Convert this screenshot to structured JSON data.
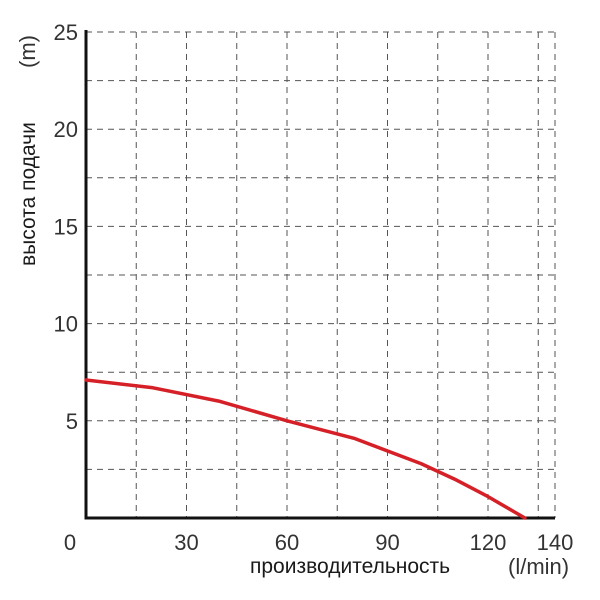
{
  "chart_data": {
    "type": "line",
    "xlabel": "производительность",
    "xunit": "(l/min)",
    "ylabel": "высота подачи",
    "yunit": "(m)",
    "xlim": [
      0,
      140
    ],
    "ylim": [
      0,
      25
    ],
    "x_tick_labels": [
      "0",
      "30",
      "60",
      "90",
      "120",
      "140"
    ],
    "x_tick_values": [
      0,
      30,
      60,
      90,
      120,
      140
    ],
    "y_tick_labels": [
      "5",
      "10",
      "15",
      "20",
      "25"
    ],
    "y_tick_values": [
      5,
      10,
      15,
      20,
      25
    ],
    "x_grid_step": 15,
    "y_grid_step": 2.5,
    "grid": true,
    "grid_style": "dashed",
    "series": [
      {
        "color": "#d62027",
        "x": [
          0,
          20,
          40,
          60,
          80,
          100,
          110,
          120,
          126,
          131
        ],
        "y": [
          7.1,
          6.7,
          6.0,
          5.0,
          4.1,
          2.8,
          2.0,
          1.1,
          0.5,
          0
        ]
      }
    ]
  }
}
